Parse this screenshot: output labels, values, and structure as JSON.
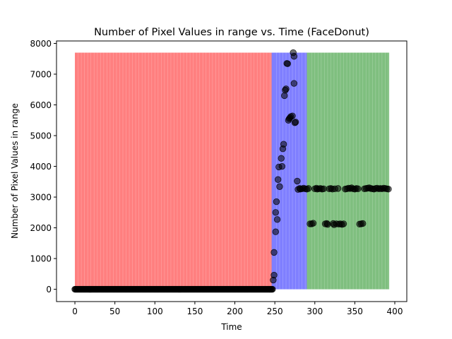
{
  "chart_data": {
    "type": "scatter",
    "title": "Number of Pixel Values in range vs. Time (FaceDonut)",
    "xlabel": "Time",
    "ylabel": "Number of Pixel Values in range",
    "xlim": [
      -23,
      415
    ],
    "ylim": [
      -400,
      8080
    ],
    "xticks": [
      0,
      50,
      100,
      150,
      200,
      250,
      300,
      350,
      400
    ],
    "yticks": [
      0,
      1000,
      2000,
      3000,
      4000,
      5000,
      6000,
      7000,
      8000
    ],
    "grid": false,
    "point_color": "#000000",
    "point_opacity": 0.55,
    "background_regions": [
      {
        "x_start": 0,
        "x_end": 246,
        "y_top": 7700,
        "color": "#ff0000",
        "alpha": 0.5
      },
      {
        "x_start": 246,
        "x_end": 290,
        "y_top": 7700,
        "color": "#0000ff",
        "alpha": 0.5
      },
      {
        "x_start": 290,
        "x_end": 393,
        "y_top": 7700,
        "color": "#008000",
        "alpha": 0.5
      }
    ],
    "flat_segment": {
      "x_start": 0,
      "x_end": 247,
      "y": 0
    },
    "points": [
      [
        248,
        300
      ],
      [
        249,
        460
      ],
      [
        249,
        1200
      ],
      [
        251,
        1870
      ],
      [
        251,
        2500
      ],
      [
        252,
        2850
      ],
      [
        253,
        2270
      ],
      [
        254,
        3570
      ],
      [
        255,
        3980
      ],
      [
        256,
        3340
      ],
      [
        258,
        4260
      ],
      [
        259,
        4000
      ],
      [
        260,
        4570
      ],
      [
        261,
        4720
      ],
      [
        262,
        6300
      ],
      [
        263,
        6480
      ],
      [
        264,
        6520
      ],
      [
        265,
        7350
      ],
      [
        266,
        7340
      ],
      [
        267,
        5500
      ],
      [
        268,
        5550
      ],
      [
        269,
        5580
      ],
      [
        270,
        5620
      ],
      [
        272,
        5640
      ],
      [
        273,
        7700
      ],
      [
        274,
        6700
      ],
      [
        274,
        7580
      ],
      [
        275,
        5420
      ],
      [
        276,
        5440
      ],
      [
        278,
        3520
      ],
      [
        279,
        3250
      ],
      [
        281,
        3280
      ],
      [
        282,
        3260
      ],
      [
        284,
        3270
      ],
      [
        286,
        3290
      ],
      [
        288,
        3270
      ],
      [
        290,
        3260
      ],
      [
        292,
        3280
      ],
      [
        294,
        2130
      ],
      [
        296,
        2130
      ],
      [
        298,
        2150
      ],
      [
        300,
        3270
      ],
      [
        302,
        3290
      ],
      [
        303,
        3260
      ],
      [
        305,
        3270
      ],
      [
        307,
        3280
      ],
      [
        309,
        3260
      ],
      [
        311,
        3270
      ],
      [
        313,
        2130
      ],
      [
        315,
        2140
      ],
      [
        316,
        2110
      ],
      [
        318,
        3270
      ],
      [
        320,
        3280
      ],
      [
        322,
        3260
      ],
      [
        323,
        2140
      ],
      [
        324,
        2100
      ],
      [
        325,
        3270
      ],
      [
        327,
        2130
      ],
      [
        329,
        3280
      ],
      [
        330,
        2120
      ],
      [
        332,
        2130
      ],
      [
        334,
        2110
      ],
      [
        336,
        2130
      ],
      [
        338,
        3260
      ],
      [
        340,
        3270
      ],
      [
        342,
        3290
      ],
      [
        344,
        3280
      ],
      [
        346,
        3300
      ],
      [
        348,
        3270
      ],
      [
        350,
        3260
      ],
      [
        352,
        3280
      ],
      [
        354,
        3270
      ],
      [
        356,
        2120
      ],
      [
        358,
        2130
      ],
      [
        360,
        2140
      ],
      [
        362,
        3270
      ],
      [
        364,
        3280
      ],
      [
        366,
        3290
      ],
      [
        368,
        3300
      ],
      [
        370,
        3280
      ],
      [
        372,
        3270
      ],
      [
        374,
        3260
      ],
      [
        376,
        3280
      ],
      [
        378,
        3290
      ],
      [
        380,
        3270
      ],
      [
        382,
        3280
      ],
      [
        384,
        3270
      ],
      [
        386,
        3290
      ],
      [
        388,
        3280
      ],
      [
        390,
        3270
      ],
      [
        392,
        3260
      ]
    ]
  }
}
